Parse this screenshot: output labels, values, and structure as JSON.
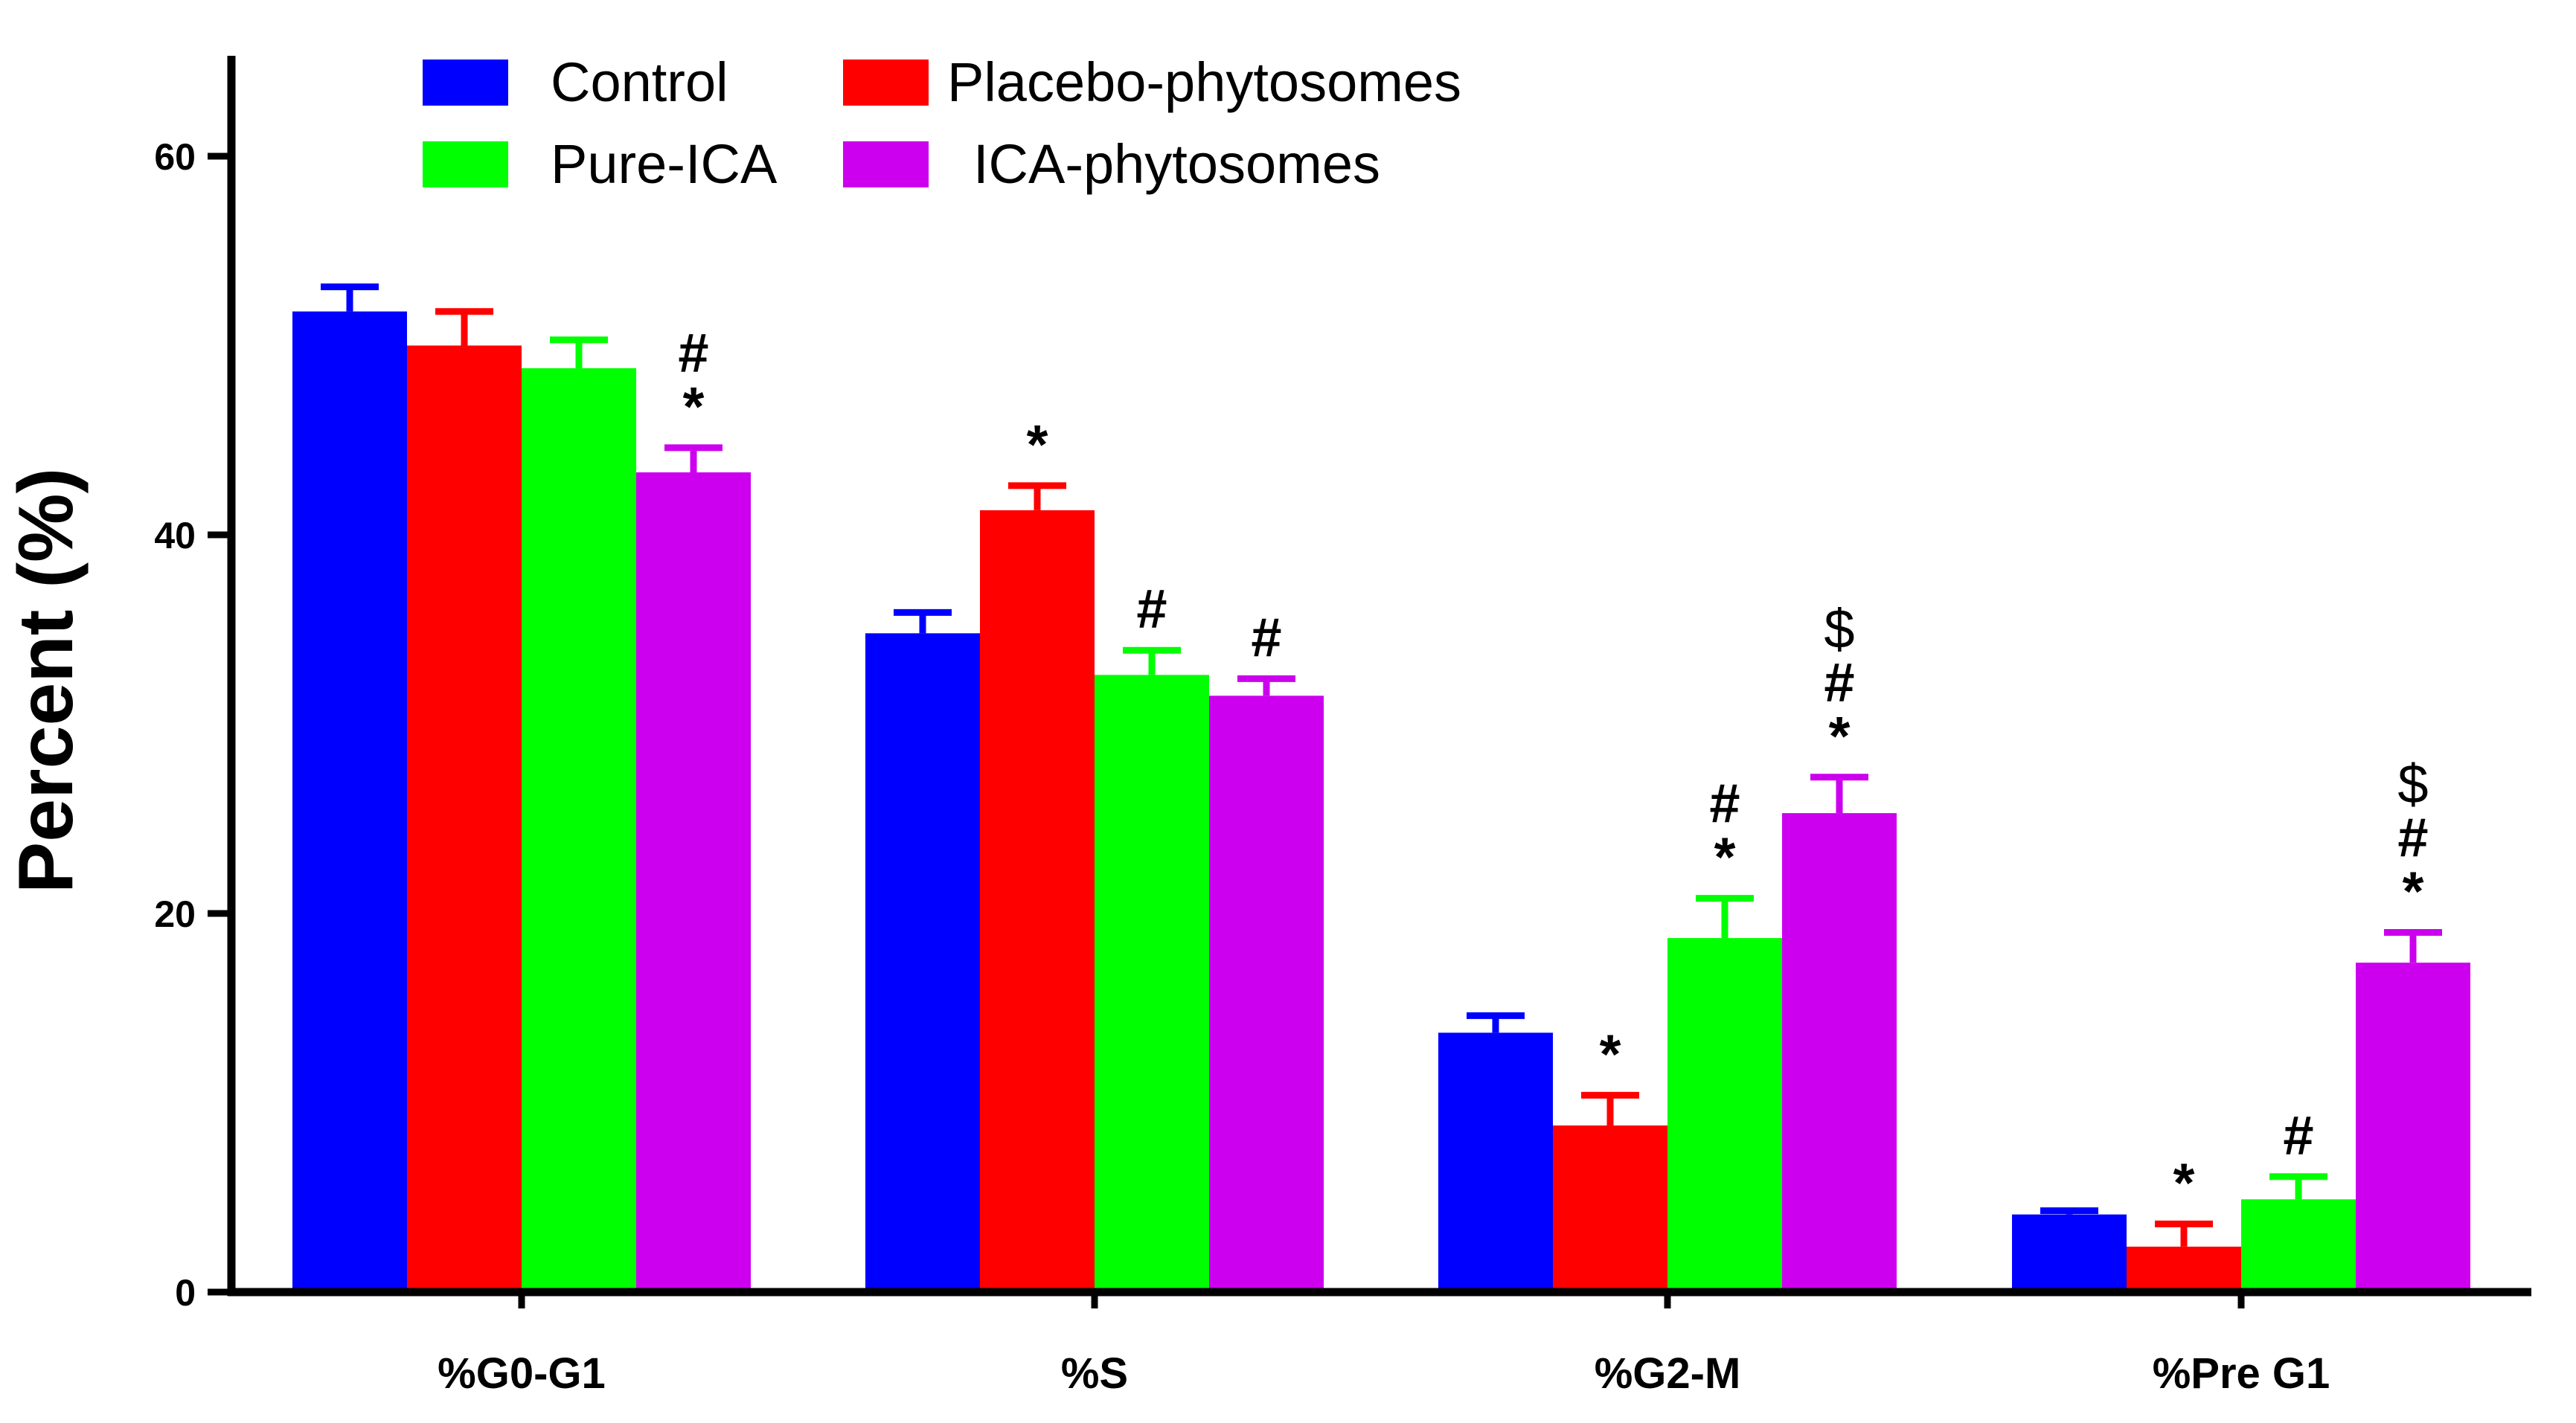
{
  "chart_data": {
    "type": "bar",
    "title": "",
    "xlabel": "",
    "ylabel": "Percent (%)",
    "ylim": [
      0,
      65
    ],
    "yticks": [
      0,
      20,
      40,
      60
    ],
    "grid": false,
    "legend_position": "top-left",
    "categories": [
      "%G0-G1",
      "%S",
      "%G2-M",
      "%Pre G1"
    ],
    "series": [
      {
        "name": "Control",
        "color": "#0000ff",
        "values": [
          51.8,
          34.8,
          13.7,
          4.1
        ],
        "errors": [
          1.3,
          1.1,
          0.9,
          0.2
        ],
        "annotations": [
          [],
          [],
          [],
          []
        ]
      },
      {
        "name": "Placebo-phytosomes",
        "color": "#ff0000",
        "values": [
          50.0,
          41.3,
          8.8,
          2.4
        ],
        "errors": [
          1.8,
          1.3,
          1.6,
          1.2
        ],
        "annotations": [
          [],
          [
            "*"
          ],
          [
            "*"
          ],
          [
            "*"
          ]
        ]
      },
      {
        "name": "Pure-ICA",
        "color": "#00ff00",
        "values": [
          48.8,
          32.6,
          18.7,
          4.9
        ],
        "errors": [
          1.5,
          1.3,
          2.1,
          1.2
        ],
        "annotations": [
          [],
          [
            "#"
          ],
          [
            "*",
            "#"
          ],
          [
            "#"
          ]
        ]
      },
      {
        "name": "ICA-phytosomes",
        "color": "#cc00ee",
        "values": [
          43.3,
          31.5,
          25.3,
          17.4
        ],
        "errors": [
          1.3,
          0.9,
          1.9,
          1.6
        ],
        "annotations": [
          [
            "*",
            "#"
          ],
          [
            "#"
          ],
          [
            "*",
            "#",
            "$"
          ],
          [
            "*",
            "#",
            "$"
          ]
        ]
      }
    ]
  }
}
